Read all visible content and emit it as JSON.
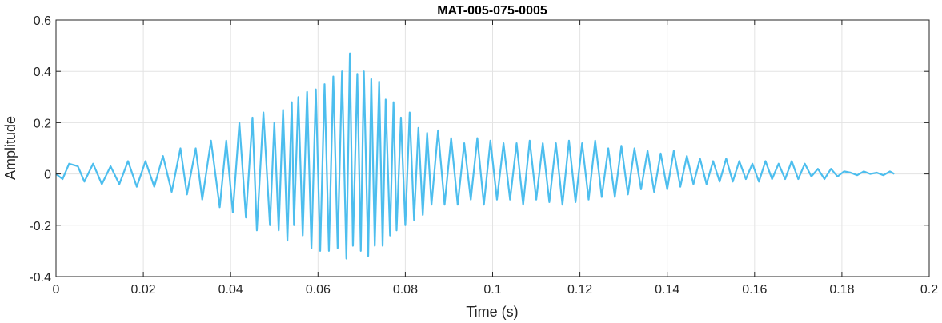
{
  "chart_data": {
    "type": "line",
    "title": "MAT-005-075-0005",
    "xlabel": "Time (s)",
    "ylabel": "Amplitude",
    "xlim": [
      0,
      0.2
    ],
    "ylim": [
      -0.4,
      0.6
    ],
    "grid": true,
    "x_ticks": [
      0,
      0.02,
      0.04,
      0.06,
      0.08,
      0.1,
      0.12,
      0.14,
      0.16,
      0.18,
      0.2
    ],
    "x_tick_labels": [
      "0",
      "0.02",
      "0.04",
      "0.06",
      "0.08",
      "0.1",
      "0.12",
      "0.14",
      "0.16",
      "0.18",
      "0.2"
    ],
    "y_ticks": [
      -0.4,
      -0.2,
      0,
      0.2,
      0.4,
      0.6
    ],
    "y_tick_labels": [
      "-0.4",
      "-0.2",
      "0",
      "0.2",
      "0.4",
      "0.6"
    ],
    "line_color": "#4DBEEE",
    "series": [
      {
        "x": [
          0,
          0.0015,
          0.003,
          0.005,
          0.0065,
          0.0085,
          0.0105,
          0.0125,
          0.0145,
          0.0165,
          0.0185,
          0.0205,
          0.0225,
          0.0245,
          0.0265,
          0.0285,
          0.03,
          0.032,
          0.0335,
          0.0355,
          0.0375,
          0.039,
          0.0405,
          0.042,
          0.0435,
          0.045,
          0.046,
          0.0475,
          0.049,
          0.05,
          0.051,
          0.052,
          0.053,
          0.054,
          0.0545,
          0.0555,
          0.0565,
          0.0575,
          0.0585,
          0.0595,
          0.0605,
          0.0615,
          0.0625,
          0.0635,
          0.0645,
          0.0655,
          0.0665,
          0.0673,
          0.068,
          0.069,
          0.0698,
          0.0705,
          0.0715,
          0.0722,
          0.073,
          0.074,
          0.0748,
          0.0755,
          0.0765,
          0.0773,
          0.078,
          0.079,
          0.08,
          0.081,
          0.082,
          0.083,
          0.084,
          0.085,
          0.086,
          0.0875,
          0.089,
          0.0905,
          0.092,
          0.0935,
          0.095,
          0.0965,
          0.098,
          0.0995,
          0.101,
          0.1025,
          0.104,
          0.1055,
          0.107,
          0.1085,
          0.11,
          0.1115,
          0.113,
          0.1145,
          0.116,
          0.1175,
          0.119,
          0.1205,
          0.122,
          0.1235,
          0.125,
          0.1265,
          0.128,
          0.1295,
          0.131,
          0.1325,
          0.134,
          0.1355,
          0.137,
          0.1385,
          0.14,
          0.1415,
          0.143,
          0.1445,
          0.146,
          0.1475,
          0.149,
          0.1505,
          0.152,
          0.1535,
          0.155,
          0.1565,
          0.158,
          0.1595,
          0.161,
          0.1625,
          0.164,
          0.1655,
          0.167,
          0.1685,
          0.17,
          0.1715,
          0.173,
          0.1745,
          0.176,
          0.1775,
          0.179,
          0.1805,
          0.182,
          0.1835,
          0.185,
          0.1865,
          0.188,
          0.1895,
          0.191,
          0.192
        ],
        "y": [
          0,
          -0.02,
          0.04,
          0.03,
          -0.03,
          0.04,
          -0.04,
          0.03,
          -0.04,
          0.05,
          -0.05,
          0.05,
          -0.05,
          0.07,
          -0.07,
          0.1,
          -0.08,
          0.1,
          -0.1,
          0.13,
          -0.13,
          0.13,
          -0.15,
          0.2,
          -0.17,
          0.22,
          -0.22,
          0.24,
          -0.2,
          0.2,
          -0.22,
          0.25,
          -0.26,
          0.28,
          -0.2,
          0.3,
          -0.24,
          0.32,
          -0.29,
          0.33,
          -0.3,
          0.35,
          -0.3,
          0.38,
          -0.29,
          0.4,
          -0.33,
          0.47,
          -0.28,
          0.39,
          -0.3,
          0.4,
          -0.32,
          0.37,
          -0.28,
          0.36,
          -0.28,
          0.29,
          -0.24,
          0.28,
          -0.22,
          0.22,
          -0.2,
          0.24,
          -0.18,
          0.18,
          -0.16,
          0.16,
          -0.12,
          0.17,
          -0.12,
          0.14,
          -0.12,
          0.12,
          -0.1,
          0.14,
          -0.12,
          0.13,
          -0.1,
          0.12,
          -0.1,
          0.12,
          -0.12,
          0.13,
          -0.1,
          0.12,
          -0.11,
          0.12,
          -0.12,
          0.13,
          -0.11,
          0.12,
          -0.1,
          0.13,
          -0.09,
          0.1,
          -0.09,
          0.11,
          -0.08,
          0.1,
          -0.06,
          0.09,
          -0.07,
          0.08,
          -0.06,
          0.09,
          -0.05,
          0.07,
          -0.04,
          0.06,
          -0.04,
          0.05,
          -0.03,
          0.06,
          -0.03,
          0.05,
          -0.02,
          0.04,
          -0.03,
          0.05,
          -0.02,
          0.04,
          -0.02,
          0.05,
          -0.02,
          0.04,
          -0.01,
          0.02,
          -0.02,
          0.02,
          -0.01,
          0.01,
          0.005,
          -0.005,
          0.01,
          0,
          0.005,
          -0.005,
          0.01,
          0
        ]
      }
    ]
  }
}
